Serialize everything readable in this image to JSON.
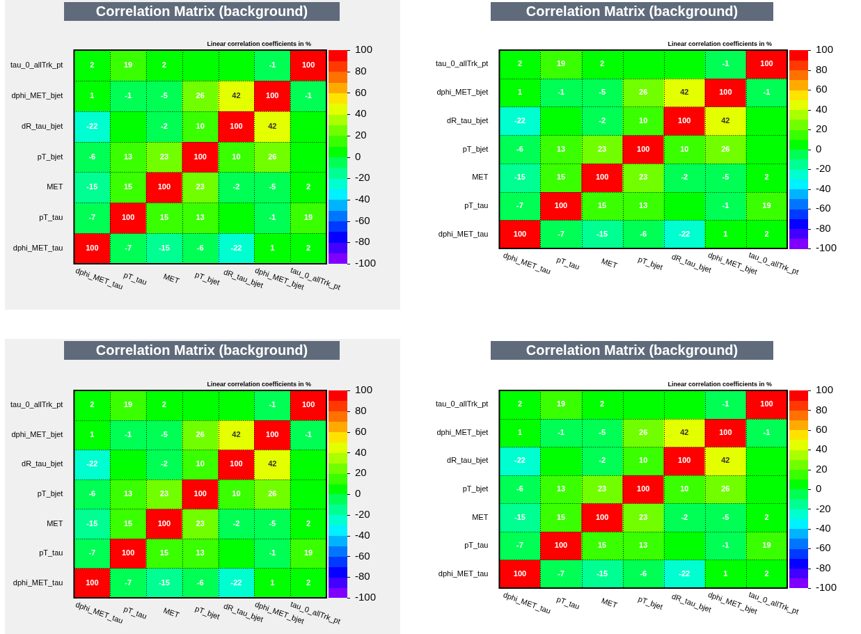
{
  "chart_data": [
    {
      "type": "heatmap",
      "title": "Correlation Matrix (background)",
      "subtitle": "Linear correlation coefficients in %",
      "categories": [
        "dphi_MET_tau",
        "pT_tau",
        "MET",
        "pT_bjet",
        "dR_tau_bjet",
        "dphi_MET_bjet",
        "tau_0_allTrk_pt"
      ],
      "y_categories": [
        "tau_0_allTrk_pt",
        "dphi_MET_bjet",
        "dR_tau_bjet",
        "pT_bjet",
        "MET",
        "pT_tau",
        "dphi_MET_tau"
      ],
      "cells": [
        [
          2,
          19,
          2,
          0,
          0,
          -1,
          100
        ],
        [
          1,
          -1,
          -5,
          26,
          42,
          100,
          -1
        ],
        [
          -22,
          0,
          -2,
          10,
          100,
          42,
          0
        ],
        [
          -6,
          13,
          23,
          100,
          10,
          26,
          0
        ],
        [
          -15,
          15,
          100,
          23,
          -2,
          -5,
          2
        ],
        [
          -7,
          100,
          15,
          13,
          0,
          -1,
          19
        ],
        [
          100,
          -7,
          -15,
          -6,
          -22,
          1,
          2
        ]
      ],
      "cell_labels": [
        [
          "2",
          "19",
          "2",
          null,
          null,
          "-1",
          "100"
        ],
        [
          "1",
          "-1",
          "-5",
          "26",
          "42",
          "100",
          "-1"
        ],
        [
          "-22",
          null,
          "-2",
          "10",
          "100",
          "42",
          null
        ],
        [
          "-6",
          "13",
          "23",
          "100",
          "10",
          "26",
          null
        ],
        [
          "-15",
          "15",
          "100",
          "23",
          "-2",
          "-5",
          "2"
        ],
        [
          "-7",
          "100",
          "15",
          "13",
          null,
          "-1",
          "19"
        ],
        [
          "100",
          "-7",
          "-15",
          "-6",
          "-22",
          "1",
          "2"
        ]
      ],
      "clim": [
        -100,
        100
      ],
      "cticks": [
        -100,
        -80,
        -60,
        -40,
        -20,
        0,
        20,
        40,
        60,
        80,
        100
      ],
      "grid": true
    },
    {
      "type": "heatmap",
      "title": "Correlation Matrix (background)",
      "subtitle": "Linear correlation coefficients in %",
      "categories": [
        "dphi_MET_tau",
        "pT_tau",
        "MET",
        "pT_bjet",
        "dR_tau_bjet",
        "dphi_MET_bjet",
        "tau_0_allTrk_pt"
      ],
      "y_categories": [
        "tau_0_allTrk_pt",
        "dphi_MET_bjet",
        "dR_tau_bjet",
        "pT_bjet",
        "MET",
        "pT_tau",
        "dphi_MET_tau"
      ],
      "cells": [
        [
          2,
          19,
          2,
          0,
          0,
          -1,
          100
        ],
        [
          1,
          -1,
          -5,
          26,
          42,
          100,
          -1
        ],
        [
          -22,
          0,
          -2,
          10,
          100,
          42,
          0
        ],
        [
          -6,
          13,
          23,
          100,
          10,
          26,
          0
        ],
        [
          -15,
          15,
          100,
          23,
          -2,
          -5,
          2
        ],
        [
          -7,
          100,
          15,
          13,
          0,
          -1,
          19
        ],
        [
          100,
          -7,
          -15,
          -6,
          -22,
          1,
          2
        ]
      ],
      "cell_labels": [
        [
          "2",
          "19",
          "2",
          null,
          null,
          "-1",
          "100"
        ],
        [
          "1",
          "-1",
          "-5",
          "26",
          "42",
          "100",
          "-1"
        ],
        [
          "-22",
          null,
          "-2",
          "10",
          "100",
          "42",
          null
        ],
        [
          "-6",
          "13",
          "23",
          "100",
          "10",
          "26",
          null
        ],
        [
          "-15",
          "15",
          "100",
          "23",
          "-2",
          "-5",
          "2"
        ],
        [
          "-7",
          "100",
          "15",
          "13",
          null,
          "-1",
          "19"
        ],
        [
          "100",
          "-7",
          "-15",
          "-6",
          "-22",
          "1",
          "2"
        ]
      ],
      "clim": [
        -100,
        100
      ],
      "cticks": [
        -100,
        -80,
        -60,
        -40,
        -20,
        0,
        20,
        40,
        60,
        80,
        100
      ],
      "grid": true
    },
    {
      "type": "heatmap",
      "title": "Correlation Matrix (background)",
      "subtitle": "Linear correlation coefficients in %",
      "categories": [
        "dphi_MET_tau",
        "pT_tau",
        "MET",
        "pT_bjet",
        "dR_tau_bjet",
        "dphi_MET_bjet",
        "tau_0_allTrk_pt"
      ],
      "y_categories": [
        "tau_0_allTrk_pt",
        "dphi_MET_bjet",
        "dR_tau_bjet",
        "pT_bjet",
        "MET",
        "pT_tau",
        "dphi_MET_tau"
      ],
      "cells": [
        [
          2,
          19,
          2,
          0,
          0,
          -1,
          100
        ],
        [
          1,
          -1,
          -5,
          26,
          42,
          100,
          -1
        ],
        [
          -22,
          0,
          -2,
          10,
          100,
          42,
          0
        ],
        [
          -6,
          13,
          23,
          100,
          10,
          26,
          0
        ],
        [
          -15,
          15,
          100,
          23,
          -2,
          -5,
          2
        ],
        [
          -7,
          100,
          15,
          13,
          0,
          -1,
          19
        ],
        [
          100,
          -7,
          -15,
          -6,
          -22,
          1,
          2
        ]
      ],
      "cell_labels": [
        [
          "2",
          "19",
          "2",
          null,
          null,
          "-1",
          "100"
        ],
        [
          "1",
          "-1",
          "-5",
          "26",
          "42",
          "100",
          "-1"
        ],
        [
          "-22",
          null,
          "-2",
          "10",
          "100",
          "42",
          null
        ],
        [
          "-6",
          "13",
          "23",
          "100",
          "10",
          "26",
          null
        ],
        [
          "-15",
          "15",
          "100",
          "23",
          "-2",
          "-5",
          "2"
        ],
        [
          "-7",
          "100",
          "15",
          "13",
          null,
          "-1",
          "19"
        ],
        [
          "100",
          "-7",
          "-15",
          "-6",
          "-22",
          "1",
          "2"
        ]
      ],
      "clim": [
        -100,
        100
      ],
      "cticks": [
        -100,
        -80,
        -60,
        -40,
        -20,
        0,
        20,
        40,
        60,
        80,
        100
      ],
      "grid": true
    },
    {
      "type": "heatmap",
      "title": "Correlation Matrix (background)",
      "subtitle": "Linear correlation coefficients in %",
      "categories": [
        "dphi_MET_tau",
        "pT_tau",
        "MET",
        "pT_bjet",
        "dR_tau_bjet",
        "dphi_MET_bjet",
        "tau_0_allTrk_pt"
      ],
      "y_categories": [
        "tau_0_allTrk_pt",
        "dphi_MET_bjet",
        "dR_tau_bjet",
        "pT_bjet",
        "MET",
        "pT_tau",
        "dphi_MET_tau"
      ],
      "cells": [
        [
          2,
          19,
          2,
          0,
          0,
          -1,
          100
        ],
        [
          1,
          -1,
          -5,
          26,
          42,
          100,
          -1
        ],
        [
          -22,
          0,
          -2,
          10,
          100,
          42,
          0
        ],
        [
          -6,
          13,
          23,
          100,
          10,
          26,
          0
        ],
        [
          -15,
          15,
          100,
          23,
          -2,
          -5,
          2
        ],
        [
          -7,
          100,
          15,
          13,
          0,
          -1,
          19
        ],
        [
          100,
          -7,
          -15,
          -6,
          -22,
          1,
          2
        ]
      ],
      "cell_labels": [
        [
          "2",
          "19",
          "2",
          null,
          null,
          "-1",
          "100"
        ],
        [
          "1",
          "-1",
          "-5",
          "26",
          "42",
          "100",
          "-1"
        ],
        [
          "-22",
          null,
          "-2",
          "10",
          "100",
          "42",
          null
        ],
        [
          "-6",
          "13",
          "23",
          "100",
          "10",
          "26",
          null
        ],
        [
          "-15",
          "15",
          "100",
          "23",
          "-2",
          "-5",
          "2"
        ],
        [
          "-7",
          "100",
          "15",
          "13",
          null,
          "-1",
          "19"
        ],
        [
          "100",
          "-7",
          "-15",
          "-6",
          "-22",
          "1",
          "2"
        ]
      ],
      "clim": [
        -100,
        100
      ],
      "cticks": [
        -100,
        -80,
        -60,
        -40,
        -20,
        0,
        20,
        40,
        60,
        80,
        100
      ],
      "grid": true
    }
  ]
}
